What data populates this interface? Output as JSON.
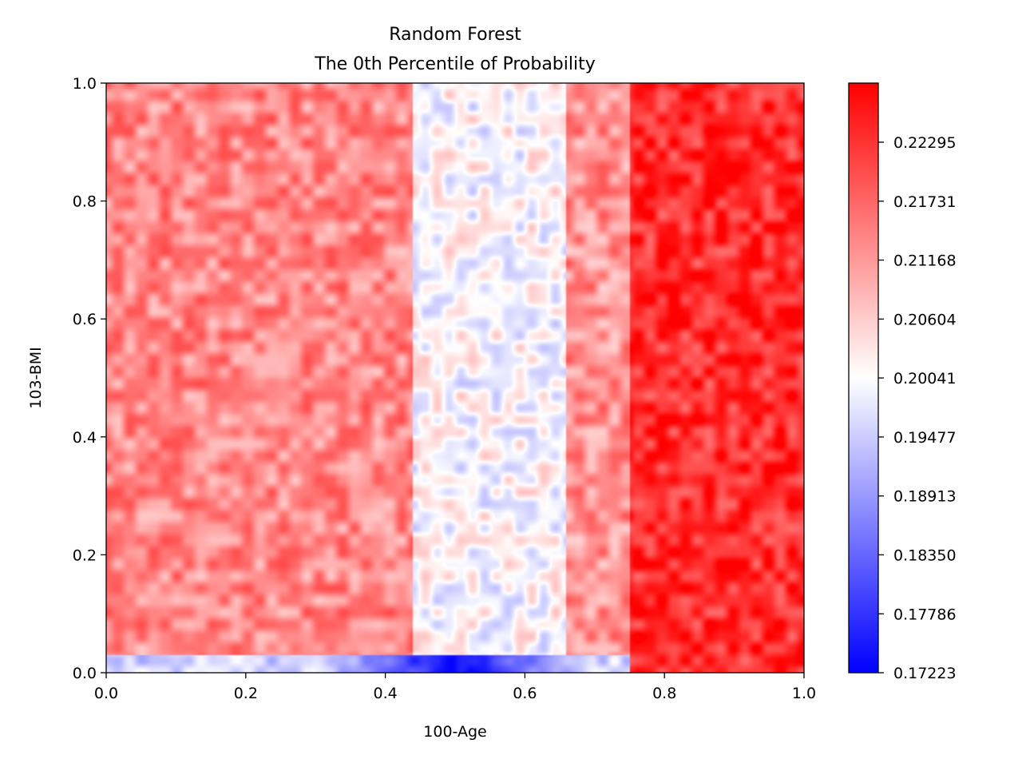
{
  "chart_data": {
    "type": "heatmap",
    "title": "Random Forest",
    "subtitle": "The 0th Percentile of Probability",
    "xlabel": "100-Age",
    "ylabel": "103-BMI",
    "xlim": [
      0.0,
      1.0
    ],
    "ylim": [
      0.0,
      1.0
    ],
    "x_ticks": [
      "0.0",
      "0.2",
      "0.4",
      "0.6",
      "0.8",
      "1.0"
    ],
    "y_ticks": [
      "0.0",
      "0.2",
      "0.4",
      "0.6",
      "0.8",
      "1.0"
    ],
    "colorbar": {
      "colormap": "bwr",
      "low_color": "#0000ff",
      "mid_color": "#ffffff",
      "high_color": "#ff0000",
      "vmin": 0.17223,
      "vmax": 0.2286,
      "tick_values": [
        0.17223,
        0.17786,
        0.1835,
        0.18913,
        0.19477,
        0.20041,
        0.20604,
        0.21168,
        0.21731,
        0.22295
      ],
      "tick_labels": [
        "0.17223",
        "0.17786",
        "0.18350",
        "0.18913",
        "0.19477",
        "0.20041",
        "0.20604",
        "0.21168",
        "0.21731",
        "0.22295"
      ]
    },
    "bands": [
      {
        "x_range": [
          0.0,
          0.44
        ],
        "typical_value": 0.2135
      },
      {
        "x_range": [
          0.44,
          0.66
        ],
        "typical_value": 0.2005
      },
      {
        "x_range": [
          0.66,
          0.75
        ],
        "typical_value": 0.2125
      },
      {
        "x_range": [
          0.75,
          1.0
        ],
        "typical_value": 0.2235
      }
    ],
    "bottom_edge": {
      "y_range": [
        0.0,
        0.03
      ],
      "typical_value": 0.196,
      "min_value": 0.1725,
      "min_at_x": 0.5
    },
    "grid": false
  }
}
